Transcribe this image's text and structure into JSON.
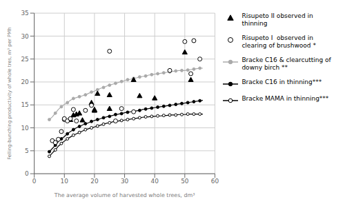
{
  "chart_data": {
    "type": "line",
    "xlabel": "The average volume of harvested whole trees, dm³",
    "ylabel": "Felling-bunching productivity of whole tres, m³ per PMh",
    "xlim": [
      0,
      60
    ],
    "ylim": [
      0,
      35
    ],
    "xticks": [
      0,
      10,
      20,
      30,
      40,
      50,
      60
    ],
    "yticks": [
      0,
      5,
      10,
      15,
      20,
      25,
      30,
      35
    ],
    "grid": true,
    "legend": "right",
    "series": [
      {
        "name": "Risupeto II observed in\nthinning",
        "type": "scatter",
        "color": "#000000",
        "marker": "triangle",
        "x": [
          12,
          13,
          14,
          15,
          16,
          19,
          20,
          20,
          21,
          25,
          25,
          33,
          35,
          40,
          50,
          52
        ],
        "values": [
          11.8,
          12.8,
          13.0,
          13.2,
          11.7,
          15.5,
          13.8,
          14.0,
          17.5,
          17.2,
          14.2,
          20.5,
          17.0,
          16.5,
          26.5,
          20.5
        ]
      },
      {
        "name": "Risupeto I  observed in\nclearing of brushwood *",
        "type": "scatter",
        "color": "#000000",
        "marker": "open_circle",
        "x": [
          6,
          7,
          8,
          9,
          10,
          10,
          11,
          12,
          13,
          14,
          17,
          19,
          25,
          27,
          29,
          33,
          45,
          50,
          52,
          53,
          55
        ],
        "values": [
          7.2,
          6.8,
          7.5,
          9.2,
          11.8,
          12.0,
          11.5,
          12.0,
          14.0,
          11.5,
          13.8,
          14.9,
          26.7,
          11.5,
          14.2,
          13.5,
          22.5,
          28.8,
          21.8,
          29.0,
          25.0
        ]
      },
      {
        "name": "Bracke C16 & clearcutting of\ndowny birch **",
        "type": "line",
        "color": "#aaaaaa",
        "marker": "circle",
        "line_style": "solid",
        "x": [
          5,
          6,
          7,
          8,
          9,
          10,
          11,
          12,
          13,
          14,
          15,
          16,
          17,
          18,
          19,
          20,
          21,
          22,
          23,
          24,
          25,
          26,
          27,
          28,
          29,
          30,
          31,
          32,
          33,
          34,
          35,
          36,
          37,
          38,
          39,
          40,
          41,
          42,
          43,
          44,
          45,
          46,
          47,
          48,
          49,
          50,
          51,
          52,
          53,
          54,
          55,
          56
        ],
        "values": [
          11.8,
          12.4,
          13.2,
          14.0,
          14.6,
          15.1,
          15.5,
          16.0,
          16.4,
          16.6,
          16.8,
          17.0,
          17.2,
          17.5,
          17.8,
          18.0,
          18.3,
          18.6,
          18.8,
          19.1,
          19.3,
          19.5,
          19.7,
          19.9,
          20.1,
          20.3,
          20.5,
          20.6,
          20.8,
          20.9,
          21.1,
          21.2,
          21.3,
          21.5,
          21.6,
          21.7,
          21.8,
          21.9,
          22.0,
          22.1,
          22.2,
          22.3,
          22.4,
          22.5,
          22.5,
          22.5,
          22.6,
          22.7,
          22.8,
          22.9,
          23.0,
          23.0
        ]
      },
      {
        "name": "Bracke C16 in thinning***",
        "type": "line",
        "color": "#000000",
        "marker": "circle",
        "line_style": "solid",
        "x": [
          5,
          6,
          7,
          8,
          9,
          10,
          11,
          12,
          13,
          14,
          15,
          16,
          17,
          18,
          19,
          20,
          21,
          22,
          23,
          24,
          25,
          26,
          27,
          28,
          29,
          30,
          31,
          32,
          33,
          34,
          35,
          36,
          37,
          38,
          39,
          40,
          41,
          42,
          43,
          44,
          45,
          46,
          47,
          48,
          49,
          50,
          51,
          52,
          53,
          54,
          55,
          56
        ],
        "values": [
          4.8,
          5.5,
          6.2,
          7.0,
          7.6,
          8.1,
          8.7,
          9.2,
          9.6,
          10.0,
          10.3,
          10.6,
          10.9,
          11.1,
          11.4,
          11.6,
          11.8,
          12.0,
          12.2,
          12.4,
          12.5,
          12.7,
          12.9,
          13.0,
          13.1,
          13.3,
          13.4,
          13.5,
          13.6,
          13.7,
          13.8,
          14.0,
          14.1,
          14.2,
          14.3,
          14.4,
          14.5,
          14.6,
          14.7,
          14.8,
          14.9,
          15.0,
          15.1,
          15.2,
          15.3,
          15.4,
          15.5,
          15.6,
          15.7,
          15.8,
          15.9,
          16.0
        ]
      },
      {
        "name": "Bracke MAMA in thinning***",
        "type": "line",
        "color": "#000000",
        "marker": "open_circle",
        "line_style": "solid",
        "x": [
          5,
          6,
          7,
          8,
          9,
          10,
          11,
          12,
          13,
          14,
          15,
          16,
          17,
          18,
          19,
          20,
          21,
          22,
          23,
          24,
          25,
          26,
          27,
          28,
          29,
          30,
          31,
          32,
          33,
          34,
          35,
          36,
          37,
          38,
          39,
          40,
          41,
          42,
          43,
          44,
          45,
          46,
          47,
          48,
          49,
          50,
          51,
          52,
          53,
          54,
          55,
          56
        ],
        "values": [
          3.8,
          4.5,
          5.2,
          6.0,
          6.6,
          7.1,
          7.6,
          8.0,
          8.4,
          8.7,
          9.0,
          9.3,
          9.6,
          9.8,
          10.0,
          10.2,
          10.4,
          10.6,
          10.8,
          11.0,
          11.1,
          11.3,
          11.4,
          11.5,
          11.6,
          11.7,
          11.8,
          11.9,
          12.0,
          12.1,
          12.2,
          12.3,
          12.4,
          12.4,
          12.5,
          12.5,
          12.6,
          12.6,
          12.7,
          12.7,
          12.8,
          12.8,
          12.8,
          12.9,
          12.9,
          12.9,
          13.0,
          13.0,
          13.0,
          13.0,
          13.0,
          13.0
        ]
      }
    ]
  }
}
